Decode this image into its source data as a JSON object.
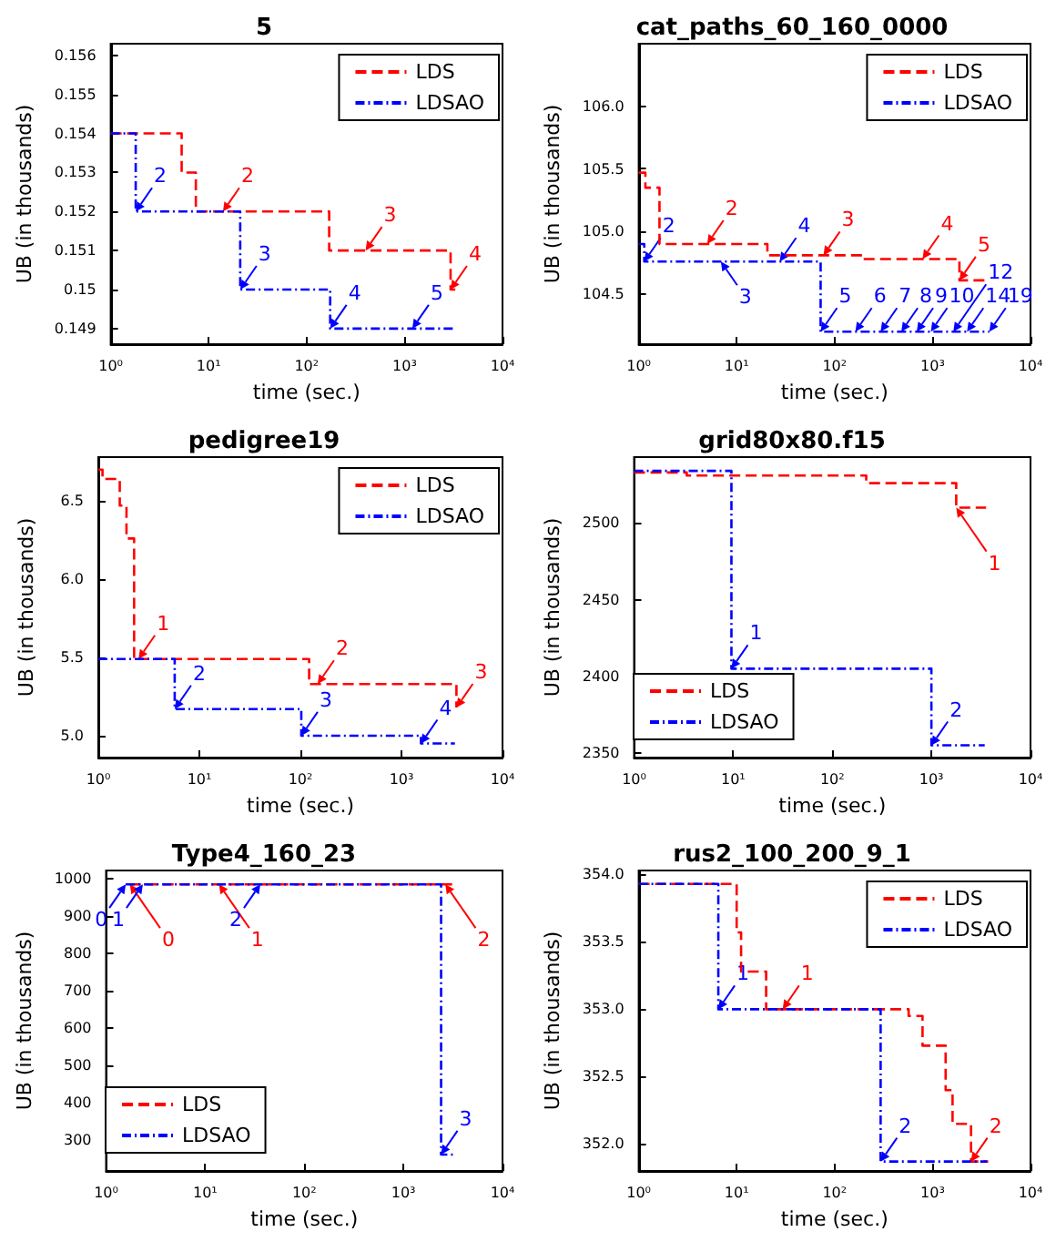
{
  "chart_data": [
    {
      "type": "step",
      "title": "5",
      "xlabel": "time (sec.)",
      "ylabel": "UB (in thousands)",
      "log": "x",
      "legend": "top right",
      "xlim": [
        1,
        10000
      ],
      "xticks": [
        {
          "value": 1,
          "label": "10⁰"
        },
        {
          "value": 10,
          "label": "10¹"
        },
        {
          "value": 100,
          "label": "10²"
        },
        {
          "value": 1000,
          "label": "10³"
        },
        {
          "value": 10000,
          "label": "10⁴"
        }
      ],
      "ylim": [
        0.1486,
        0.1563
      ],
      "yticks": [
        0.149,
        0.15,
        0.151,
        0.152,
        0.153,
        0.154,
        0.155,
        0.156
      ],
      "series": [
        {
          "name": "LDS",
          "color": "#ff0000",
          "line_style": "dashed",
          "x": [
            1,
            5.3,
            7.4,
            14,
            170,
            400,
            2950,
            3300
          ],
          "values": [
            0.154,
            0.153,
            0.152,
            0.152,
            0.151,
            0.151,
            0.15,
            0.15
          ]
        },
        {
          "name": "LDSAO",
          "color": "#0000ff",
          "line_style": "dotted",
          "x": [
            1,
            1.8,
            21,
            174,
            1200,
            3250
          ],
          "values": [
            0.154,
            0.152,
            0.15,
            0.149,
            0.149,
            0.149
          ]
        }
      ],
      "annotations": [
        {
          "text": "2",
          "x": 14,
          "y": 0.152
        },
        {
          "text": "3",
          "x": 400,
          "y": 0.151
        },
        {
          "text": "4",
          "x": 2950,
          "y": 0.15
        },
        {
          "text": "2",
          "x": 1.8,
          "y": 0.152
        },
        {
          "text": "3",
          "x": 21,
          "y": 0.15
        },
        {
          "text": "4",
          "x": 174,
          "y": 0.149
        },
        {
          "text": "5",
          "x": 1200,
          "y": 0.149
        }
      ]
    },
    {
      "type": "step",
      "title": "cat_paths_60_160_0000",
      "xlabel": "time (sec.)",
      "ylabel": "UB (in thousands)",
      "log": "x",
      "legend": "top right",
      "xlim": [
        1,
        10000
      ],
      "xticks": [
        {
          "value": 1,
          "label": "10⁰"
        },
        {
          "value": 10,
          "label": "10¹"
        },
        {
          "value": 100,
          "label": "10²"
        },
        {
          "value": 1000,
          "label": "10³"
        },
        {
          "value": 10000,
          "label": "10⁴"
        }
      ],
      "ylim": [
        104.1,
        106.5
      ],
      "yticks": [
        104.5,
        {
          "value": 105,
          "label": "105.0"
        },
        105.5,
        {
          "value": 106,
          "label": "106.0"
        }
      ],
      "series": [
        {
          "name": "LDS",
          "color": "#ff0000",
          "line_style": "dashed",
          "x": [
            1,
            1.17,
            1.63,
            5,
            20.6,
            77,
            198,
            790,
            1880,
            3560
          ],
          "values": [
            105.47,
            105.35,
            104.9,
            104.9,
            104.81,
            104.81,
            104.78,
            104.78,
            104.61,
            104.61
          ]
        },
        {
          "name": "LDSAO",
          "color": "#0000ff",
          "line_style": "dotted",
          "x": [
            1,
            1.14,
            6.9,
            27.5,
            72,
            163,
            295,
            480,
            690,
            960,
            1630,
            2250,
            3800
          ],
          "values": [
            104.9,
            104.76,
            104.76,
            104.76,
            104.2,
            104.2,
            104.2,
            104.2,
            104.2,
            104.2,
            104.2,
            104.2,
            104.2
          ]
        }
      ],
      "annotations": [
        {
          "text": "2",
          "x": 5,
          "y": 104.9
        },
        {
          "text": "3",
          "x": 77,
          "y": 104.81
        },
        {
          "text": "4",
          "x": 790,
          "y": 104.78
        },
        {
          "text": "5",
          "x": 1880,
          "y": 104.61
        },
        {
          "text": "2",
          "x": 1.14,
          "y": 104.76
        },
        {
          "text": "3",
          "x": 6.9,
          "y": 104.76
        },
        {
          "text": "4",
          "x": 27.5,
          "y": 104.76
        },
        {
          "text": "5",
          "x": 72,
          "y": 104.2
        },
        {
          "text": "6",
          "x": 163,
          "y": 104.2
        },
        {
          "text": "7",
          "x": 295,
          "y": 104.2
        },
        {
          "text": "8",
          "x": 480,
          "y": 104.2
        },
        {
          "text": "9",
          "x": 690,
          "y": 104.2
        },
        {
          "text": "10",
          "x": 960,
          "y": 104.2
        },
        {
          "text": "12",
          "x": 1630,
          "y": 104.2
        },
        {
          "text": "14",
          "x": 2250,
          "y": 104.2
        },
        {
          "text": "19",
          "x": 3800,
          "y": 104.2
        }
      ]
    },
    {
      "type": "step",
      "title": "pedigree19",
      "xlabel": "time (sec.)",
      "ylabel": "UB (in thousands)",
      "log": "x",
      "legend": "top right",
      "xlim": [
        1,
        10000
      ],
      "xticks": [
        {
          "value": 1,
          "label": "10⁰"
        },
        {
          "value": 10,
          "label": "10¹"
        },
        {
          "value": 100,
          "label": "10²"
        },
        {
          "value": 1000,
          "label": "10³"
        },
        {
          "value": 10000,
          "label": "10⁴"
        }
      ],
      "ylim": [
        4.86,
        6.78
      ],
      "yticks": [
        {
          "value": 5,
          "label": "5.0"
        },
        5.5,
        {
          "value": 6,
          "label": "6.0"
        },
        6.5
      ],
      "series": [
        {
          "name": "LDS",
          "color": "#ff0000",
          "line_style": "dashed",
          "x": [
            1,
            1.1,
            1.63,
            1.9,
            2.26,
            2.5,
            122,
            148,
            3500
          ],
          "values": [
            6.7,
            6.64,
            6.47,
            6.26,
            5.49,
            5.49,
            5.33,
            5.33,
            5.18
          ]
        },
        {
          "name": "LDSAO",
          "color": "#0000ff",
          "line_style": "dotted",
          "x": [
            1,
            5.7,
            102,
            1560,
            3380
          ],
          "values": [
            5.49,
            5.17,
            5.0,
            4.95,
            4.95
          ]
        }
      ],
      "annotations": [
        {
          "text": "1",
          "x": 2.5,
          "y": 5.49
        },
        {
          "text": "2",
          "x": 148,
          "y": 5.33
        },
        {
          "text": "3",
          "x": 3500,
          "y": 5.18
        },
        {
          "text": "2",
          "x": 5.7,
          "y": 5.17
        },
        {
          "text": "3",
          "x": 102,
          "y": 5.0
        },
        {
          "text": "4",
          "x": 1560,
          "y": 4.95
        }
      ]
    },
    {
      "type": "step",
      "title": "grid80x80.f15",
      "xlabel": "time (sec.)",
      "ylabel": "UB (in thousands)",
      "log": "x",
      "legend": "bottom left",
      "xlim": [
        1,
        10000
      ],
      "xticks": [
        {
          "value": 1,
          "label": "10⁰"
        },
        {
          "value": 10,
          "label": "10¹"
        },
        {
          "value": 100,
          "label": "10²"
        },
        {
          "value": 1000,
          "label": "10³"
        },
        {
          "value": 10000,
          "label": "10⁴"
        }
      ],
      "ylim": [
        2347,
        2543
      ],
      "yticks": [
        2350,
        2400,
        2450,
        2500
      ],
      "series": [
        {
          "name": "LDS",
          "color": "#ff0000",
          "line_style": "dashed",
          "x": [
            1,
            3.4,
            220,
            1780,
            3560
          ],
          "values": [
            2533,
            2531,
            2526,
            2510,
            2510
          ]
        },
        {
          "name": "LDSAO",
          "color": "#0000ff",
          "line_style": "dotted",
          "x": [
            1,
            9.6,
            1000,
            3450
          ],
          "values": [
            2534,
            2405,
            2355,
            2355
          ]
        }
      ],
      "annotations": [
        {
          "text": "1",
          "x": 1780,
          "y": 2510
        },
        {
          "text": "1",
          "x": 9.6,
          "y": 2405
        },
        {
          "text": "2",
          "x": 1000,
          "y": 2355
        }
      ]
    },
    {
      "type": "step",
      "title": "Type4_160_23",
      "xlabel": "time (sec.)",
      "ylabel": "UB (in thousands)",
      "log": "x",
      "legend": "bottom left",
      "xlim": [
        1,
        10000
      ],
      "xticks": [
        {
          "value": 1,
          "label": "10⁰"
        },
        {
          "value": 10,
          "label": "10¹"
        },
        {
          "value": 100,
          "label": "10²"
        },
        {
          "value": 1000,
          "label": "10³"
        },
        {
          "value": 10000,
          "label": "10⁴"
        }
      ],
      "ylim": [
        218,
        1022
      ],
      "yticks": [
        300,
        400,
        500,
        600,
        700,
        800,
        900,
        1000
      ],
      "series": [
        {
          "name": "LDS",
          "color": "#ff0000",
          "line_style": "dashed",
          "x": [
            1.74,
            13.8,
            2650,
            3400
          ],
          "values": [
            985,
            985,
            985,
            985
          ]
        },
        {
          "name": "LDSAO",
          "color": "#0000ff",
          "line_style": "dotted",
          "x": [
            1.58,
            2.35,
            36,
            2400,
            3400
          ],
          "values": [
            985,
            985,
            985,
            262,
            262
          ]
        }
      ],
      "annotations": [
        {
          "text": "0",
          "x": 1.74,
          "y": 985
        },
        {
          "text": "1",
          "x": 13.8,
          "y": 985
        },
        {
          "text": "2",
          "x": 2650,
          "y": 985
        },
        {
          "text": "0",
          "x": 1.58,
          "y": 985
        },
        {
          "text": "1",
          "x": 2.35,
          "y": 985
        },
        {
          "text": "2",
          "x": 36,
          "y": 985
        },
        {
          "text": "3",
          "x": 2400,
          "y": 262
        }
      ]
    },
    {
      "type": "step",
      "title": "rus2_100_200_9_1",
      "xlabel": "time (sec.)",
      "ylabel": "UB (in thousands)",
      "log": "x",
      "legend": "top right",
      "xlim": [
        1,
        10000
      ],
      "xticks": [
        {
          "value": 1,
          "label": "10⁰"
        },
        {
          "value": 10,
          "label": "10¹"
        },
        {
          "value": 100,
          "label": "10²"
        },
        {
          "value": 1000,
          "label": "10³"
        },
        {
          "value": 10000,
          "label": "10⁴"
        }
      ],
      "ylim": [
        351.8,
        354.03
      ],
      "yticks": [
        {
          "value": 352,
          "label": "352.0"
        },
        352.5,
        {
          "value": 353,
          "label": "353.0"
        },
        353.5,
        {
          "value": 354,
          "label": "354.0"
        }
      ],
      "series": [
        {
          "name": "LDS",
          "color": "#ff0000",
          "line_style": "dashed",
          "x": [
            1,
            10,
            11.1,
            20,
            29.5,
            570,
            790,
            1360,
            1600,
            2470,
            3700
          ],
          "values": [
            353.93,
            353.57,
            353.28,
            353.0,
            353.0,
            352.95,
            352.73,
            352.4,
            352.15,
            351.87,
            351.87
          ]
        },
        {
          "name": "LDSAO",
          "color": "#0000ff",
          "line_style": "dotted",
          "x": [
            1,
            6.5,
            295,
            3600
          ],
          "values": [
            353.93,
            353.0,
            351.87,
            351.87
          ]
        }
      ],
      "annotations": [
        {
          "text": "1",
          "x": 29.5,
          "y": 353.0
        },
        {
          "text": "2",
          "x": 2470,
          "y": 351.87
        },
        {
          "text": "1",
          "x": 6.5,
          "y": 353.0
        },
        {
          "text": "2",
          "x": 295,
          "y": 351.87
        }
      ]
    }
  ]
}
